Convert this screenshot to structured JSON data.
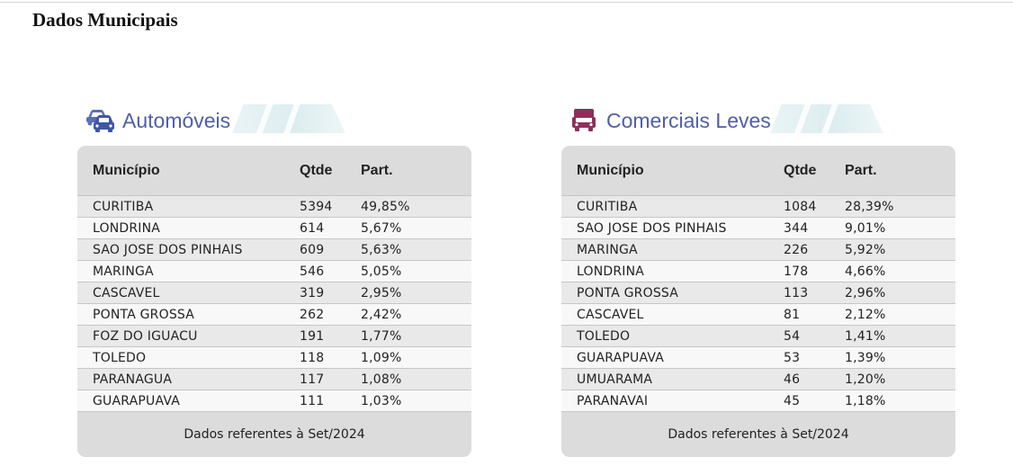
{
  "page": {
    "title": "Dados Municipais"
  },
  "colors": {
    "title_blue": "#4f5fa8",
    "car_icon": "#5a6fb5",
    "truck_icon": "#8e2f5a"
  },
  "automoveis": {
    "title": "Automóveis",
    "icon": "cars-icon",
    "headers": {
      "municipio": "Município",
      "qtde": "Qtde",
      "part": "Part."
    },
    "rows": [
      {
        "municipio": "CURITIBA",
        "qtde": "5394",
        "part": "49,85%"
      },
      {
        "municipio": "LONDRINA",
        "qtde": "614",
        "part": "5,67%"
      },
      {
        "municipio": "SAO JOSE DOS PINHAIS",
        "qtde": "609",
        "part": "5,63%"
      },
      {
        "municipio": "MARINGA",
        "qtde": "546",
        "part": "5,05%"
      },
      {
        "municipio": "CASCAVEL",
        "qtde": "319",
        "part": "2,95%"
      },
      {
        "municipio": "PONTA GROSSA",
        "qtde": "262",
        "part": "2,42%"
      },
      {
        "municipio": "FOZ DO IGUACU",
        "qtde": "191",
        "part": "1,77%"
      },
      {
        "municipio": "TOLEDO",
        "qtde": "118",
        "part": "1,09%"
      },
      {
        "municipio": "PARANAGUA",
        "qtde": "117",
        "part": "1,08%"
      },
      {
        "municipio": "GUARAPUAVA",
        "qtde": "111",
        "part": "1,03%"
      }
    ],
    "footer": "Dados referentes à Set/2024"
  },
  "comerciais": {
    "title": "Comerciais Leves",
    "icon": "truck-icon",
    "headers": {
      "municipio": "Município",
      "qtde": "Qtde",
      "part": "Part."
    },
    "rows": [
      {
        "municipio": "CURITIBA",
        "qtde": "1084",
        "part": "28,39%"
      },
      {
        "municipio": "SAO JOSE DOS PINHAIS",
        "qtde": "344",
        "part": "9,01%"
      },
      {
        "municipio": "MARINGA",
        "qtde": "226",
        "part": "5,92%"
      },
      {
        "municipio": "LONDRINA",
        "qtde": "178",
        "part": "4,66%"
      },
      {
        "municipio": "PONTA GROSSA",
        "qtde": "113",
        "part": "2,96%"
      },
      {
        "municipio": "CASCAVEL",
        "qtde": "81",
        "part": "2,12%"
      },
      {
        "municipio": "TOLEDO",
        "qtde": "54",
        "part": "1,41%"
      },
      {
        "municipio": "GUARAPUAVA",
        "qtde": "53",
        "part": "1,39%"
      },
      {
        "municipio": "UMUARAMA",
        "qtde": "46",
        "part": "1,20%"
      },
      {
        "municipio": "PARANAVAI",
        "qtde": "45",
        "part": "1,18%"
      }
    ],
    "footer": "Dados referentes à Set/2024"
  }
}
